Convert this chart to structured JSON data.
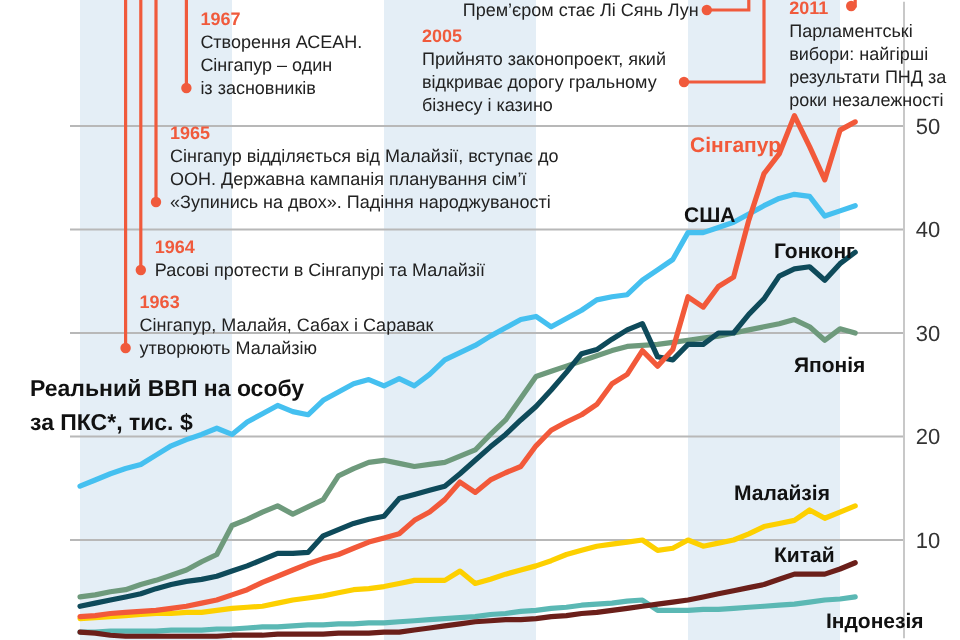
{
  "chart_data": {
    "type": "line",
    "ylabel": "Реальний ВВП на особу\nза ПКС*, тис. $",
    "categories": [
      null,
      null,
      null,
      null,
      null,
      null,
      null,
      null,
      null,
      null,
      null,
      null,
      null,
      null,
      null,
      null,
      null,
      null,
      null,
      null,
      null,
      null,
      null,
      null,
      null,
      null,
      null,
      null,
      null,
      null,
      null,
      null,
      null,
      null,
      null,
      null,
      null,
      null,
      null,
      null,
      null,
      null,
      null,
      null,
      null,
      null,
      null,
      null,
      null,
      null,
      null,
      null
    ],
    "ylim": [
      0.5,
      62
    ],
    "yticks": [
      10,
      20,
      30,
      40,
      50
    ],
    "grid": "y",
    "tick_labels": "y",
    "marker": "none",
    "line_style": "solid",
    "series": [
      {
        "name": "Індонезія",
        "color": "#5bb8b4",
        "values": [
          1.1,
          1.1,
          1.2,
          1.2,
          1.2,
          1.2,
          1.3,
          1.3,
          1.3,
          1.4,
          1.4,
          1.5,
          1.6,
          1.6,
          1.7,
          1.8,
          1.8,
          1.9,
          1.9,
          2.0,
          2.0,
          2.1,
          2.2,
          2.3,
          2.4,
          2.5,
          2.6,
          2.8,
          2.9,
          3.1,
          3.2,
          3.4,
          3.5,
          3.7,
          3.8,
          3.9,
          4.1,
          4.2,
          3.2,
          3.2,
          3.2,
          3.3,
          3.3,
          3.4,
          3.5,
          3.6,
          3.7,
          3.8,
          4.0,
          4.2,
          4.3,
          4.5
        ]
      },
      {
        "name": "Китай",
        "color": "#6b1f1a",
        "values": [
          1.1,
          1.0,
          0.8,
          0.7,
          0.7,
          0.7,
          0.7,
          0.7,
          0.7,
          0.7,
          0.8,
          0.8,
          0.8,
          0.9,
          0.9,
          0.9,
          0.9,
          1.0,
          1.0,
          1.0,
          1.1,
          1.1,
          1.3,
          1.5,
          1.7,
          1.9,
          2.1,
          2.2,
          2.3,
          2.3,
          2.4,
          2.6,
          2.7,
          2.9,
          3.0,
          3.2,
          3.4,
          3.6,
          3.8,
          4.0,
          4.2,
          4.5,
          4.8,
          5.1,
          5.4,
          5.7,
          6.2,
          6.7,
          6.7,
          6.7,
          7.2,
          7.8
        ]
      },
      {
        "name": "Малайзія",
        "color": "#fdd000",
        "values": [
          2.4,
          2.5,
          2.6,
          2.7,
          2.8,
          2.9,
          2.9,
          3.0,
          3.0,
          3.2,
          3.4,
          3.5,
          3.6,
          3.9,
          4.2,
          4.4,
          4.6,
          4.9,
          5.2,
          5.3,
          5.5,
          5.8,
          6.1,
          6.1,
          6.1,
          7.0,
          5.8,
          6.2,
          6.7,
          7.1,
          7.5,
          8.0,
          8.6,
          9.0,
          9.4,
          9.6,
          9.8,
          10.0,
          9.0,
          9.2,
          10.0,
          9.4,
          9.7,
          10.0,
          10.6,
          11.3,
          11.6,
          11.9,
          12.9,
          12.1,
          12.7,
          13.3
        ]
      },
      {
        "name": "Японія",
        "color": "#6e9a7c",
        "values": [
          4.5,
          4.7,
          5.0,
          5.2,
          5.7,
          6.1,
          6.6,
          7.1,
          7.9,
          8.6,
          11.4,
          12.0,
          12.7,
          13.3,
          12.5,
          13.2,
          13.9,
          16.2,
          16.9,
          17.5,
          17.7,
          17.4,
          17.1,
          17.3,
          17.5,
          18.1,
          18.7,
          20.2,
          21.6,
          23.7,
          25.8,
          26.3,
          26.8,
          27.3,
          27.8,
          28.3,
          28.7,
          28.8,
          28.9,
          29.1,
          29.3,
          29.5,
          29.7,
          30.0,
          30.3,
          30.6,
          30.9,
          31.3,
          30.6,
          29.3,
          30.4,
          30.0
        ]
      },
      {
        "name": "Гонконг",
        "color": "#0e4a5a",
        "values": [
          3.6,
          3.9,
          4.2,
          4.5,
          4.8,
          5.3,
          5.7,
          6.0,
          6.2,
          6.5,
          7.0,
          7.5,
          8.1,
          8.7,
          8.7,
          8.8,
          10.4,
          11.0,
          11.6,
          12.0,
          12.3,
          14.0,
          14.4,
          14.8,
          15.2,
          16.4,
          17.7,
          19.0,
          20.2,
          21.6,
          22.9,
          24.5,
          26.2,
          28.0,
          28.4,
          29.4,
          30.3,
          30.9,
          27.7,
          27.4,
          28.9,
          28.9,
          30.0,
          30.0,
          31.8,
          33.3,
          35.5,
          36.2,
          36.4,
          35.1,
          36.7,
          37.8
        ]
      },
      {
        "name": "США",
        "color": "#45c0f0",
        "values": [
          15.2,
          15.8,
          16.4,
          16.9,
          17.3,
          18.2,
          19.1,
          19.7,
          20.2,
          20.8,
          20.2,
          21.4,
          22.2,
          23.0,
          22.4,
          22.1,
          23.5,
          24.3,
          25.1,
          25.5,
          24.9,
          25.6,
          24.9,
          26.0,
          27.4,
          28.1,
          28.8,
          29.7,
          30.5,
          31.3,
          31.6,
          30.6,
          31.4,
          32.2,
          33.2,
          33.5,
          33.7,
          35.1,
          36.1,
          37.1,
          39.7,
          39.7,
          40.2,
          40.7,
          41.5,
          42.3,
          43.0,
          43.4,
          43.2,
          41.3,
          41.8,
          42.3
        ]
      },
      {
        "name": "Сінгапур",
        "color": "#f2593a",
        "values": [
          2.6,
          2.7,
          2.9,
          3.0,
          3.1,
          3.2,
          3.4,
          3.6,
          3.9,
          4.2,
          4.7,
          5.2,
          5.9,
          6.5,
          7.1,
          7.7,
          8.2,
          8.6,
          9.2,
          9.8,
          10.2,
          10.6,
          11.9,
          12.7,
          13.9,
          15.6,
          14.6,
          15.8,
          16.5,
          17.1,
          19.1,
          20.6,
          21.4,
          22.1,
          23.1,
          25.1,
          26.0,
          28.3,
          26.8,
          28.4,
          33.5,
          32.5,
          34.5,
          35.4,
          40.9,
          45.4,
          47.3,
          51.0,
          48.0,
          44.8,
          49.6,
          50.4
        ]
      }
    ],
    "annotations": [
      "1963\nСінгапур, Малайя, Сабах і Саравак\nутворюють Малайзію",
      "1964\nРасові протести в Сінгапурі та Малайзії",
      "1965\nСінгапур відділяється від Малайзії, вступає до\nООН. Державна кампанія планування сім’ї\n«Зупинись на двох». Падіння народжуваності",
      "1967\nСтворення АСЕАН.\nСінгапур – один\nіз засновників",
      "Прем’єром стає Лі Сянь Лун",
      "2005\nПрийнято законопроект, який\nвідкриває дорогу гральному\nбізнесу і казино",
      "2011\nПарламентські\nвибори: найгірші\nрезультати ПНД за\nроки незалежності"
    ]
  }
}
